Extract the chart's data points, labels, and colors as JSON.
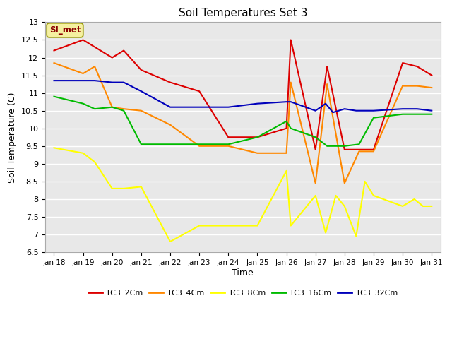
{
  "title": "Soil Temperatures Set 3",
  "xlabel": "Time",
  "ylabel": "Soil Temperature (C)",
  "ylim": [
    6.5,
    13.0
  ],
  "yticks": [
    6.5,
    7.0,
    7.5,
    8.0,
    8.5,
    9.0,
    9.5,
    10.0,
    10.5,
    11.0,
    11.5,
    12.0,
    12.5,
    13.0
  ],
  "x_labels": [
    "Jan 18",
    "Jan 19",
    "Jan 20",
    "Jan 21",
    "Jan 22",
    "Jan 23",
    "Jan 24",
    "Jan 25",
    "Jan 26",
    "Jan 27",
    "Jan 28",
    "Jan 29",
    "Jan 30",
    "Jan 31"
  ],
  "fig_bg": "#ffffff",
  "plot_bg": "#e8e8e8",
  "grid_color": "#ffffff",
  "SI_met_label": "SI_met",
  "series_names": [
    "TC3_2Cm",
    "TC3_4Cm",
    "TC3_8Cm",
    "TC3_16Cm",
    "TC3_32Cm"
  ],
  "series_colors": [
    "#dd0000",
    "#ff8800",
    "#ffff00",
    "#00bb00",
    "#0000bb"
  ],
  "TC3_2Cm_x": [
    0,
    1,
    1.4,
    2,
    2.4,
    3,
    4,
    5,
    6,
    7,
    8,
    8.15,
    9,
    9.4,
    10,
    10.5,
    11,
    12,
    12.5,
    13
  ],
  "TC3_2Cm_y": [
    12.2,
    12.5,
    12.3,
    12.0,
    12.2,
    11.65,
    11.3,
    11.05,
    9.75,
    9.75,
    10.0,
    12.5,
    9.4,
    11.75,
    9.4,
    9.4,
    9.4,
    11.85,
    11.75,
    11.5
  ],
  "TC3_4Cm_x": [
    0,
    1,
    1.4,
    2,
    2.4,
    3,
    4,
    5,
    6,
    7,
    8,
    8.15,
    9,
    9.4,
    10,
    10.5,
    11,
    12,
    12.5,
    13
  ],
  "TC3_4Cm_y": [
    11.85,
    11.55,
    11.75,
    10.6,
    10.55,
    10.5,
    10.1,
    9.5,
    9.5,
    9.3,
    9.3,
    11.3,
    8.45,
    11.25,
    8.45,
    9.35,
    9.35,
    11.2,
    11.2,
    11.15
  ],
  "TC3_8Cm_x": [
    0,
    1,
    1.4,
    2,
    2.4,
    3,
    4,
    5,
    6,
    7,
    8,
    8.15,
    9,
    9.35,
    9.7,
    10,
    10.4,
    10.7,
    11,
    12,
    12.4,
    12.7,
    13
  ],
  "TC3_8Cm_y": [
    9.45,
    9.3,
    9.05,
    8.3,
    8.3,
    8.35,
    6.8,
    7.25,
    7.25,
    7.25,
    8.8,
    7.25,
    8.1,
    7.05,
    8.1,
    7.8,
    6.95,
    8.5,
    8.1,
    7.8,
    8.0,
    7.8,
    7.8
  ],
  "TC3_16Cm_x": [
    0,
    1,
    1.4,
    2,
    2.4,
    3,
    4,
    5,
    6,
    7,
    8,
    8.15,
    9,
    9.4,
    10,
    10.5,
    11,
    12,
    12.5,
    13
  ],
  "TC3_16Cm_y": [
    10.9,
    10.7,
    10.55,
    10.6,
    10.5,
    9.55,
    9.55,
    9.55,
    9.55,
    9.75,
    10.2,
    10.0,
    9.75,
    9.5,
    9.5,
    9.55,
    10.3,
    10.4,
    10.4,
    10.4
  ],
  "TC3_32Cm_x": [
    0,
    1,
    1.4,
    2,
    2.4,
    3,
    4,
    5,
    6,
    7,
    8,
    8.15,
    9,
    9.35,
    9.6,
    10,
    10.4,
    11,
    12,
    12.5,
    13
  ],
  "TC3_32Cm_y": [
    11.35,
    11.35,
    11.35,
    11.3,
    11.3,
    11.05,
    10.6,
    10.6,
    10.6,
    10.7,
    10.75,
    10.75,
    10.5,
    10.7,
    10.45,
    10.55,
    10.5,
    10.5,
    10.55,
    10.55,
    10.5
  ]
}
